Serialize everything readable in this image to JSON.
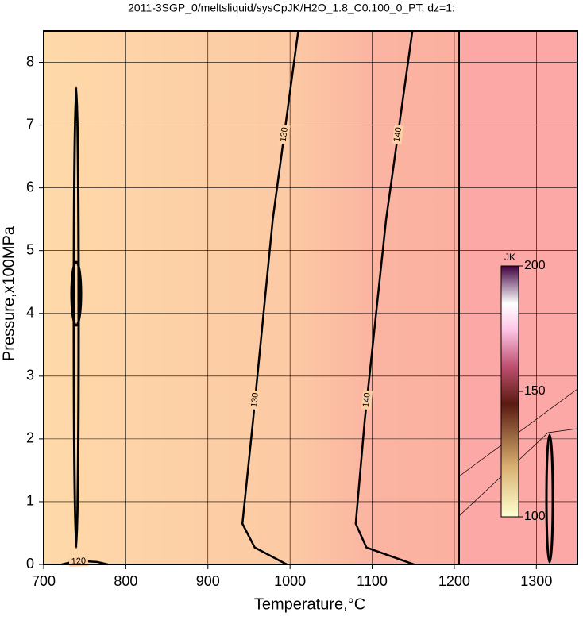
{
  "chart_data": {
    "type": "contour",
    "title": "2011-3SGP_0/meltsliquid/sysCpJK/H2O_1.8_C0.100_0_PT, dz=1:",
    "xlabel": "Temperature,°C",
    "ylabel": "Pressure,x100MPa",
    "xlim": [
      700,
      1350
    ],
    "xticks": [
      700,
      800,
      900,
      1000,
      1100,
      1200,
      1300
    ],
    "ylim": [
      0,
      8.5
    ],
    "yticks": [
      0,
      1,
      2,
      3,
      4,
      5,
      6,
      7,
      8
    ],
    "grid": true,
    "contours": [
      {
        "level": 130,
        "x": [
          1010,
          979,
          955,
          942,
          957,
          996
        ],
        "y": [
          8.5,
          5.5,
          2.3,
          0.65,
          0.27,
          0
        ]
      },
      {
        "level": 140,
        "x": [
          1149,
          1117,
          1091,
          1080,
          1093,
          1151
        ],
        "y": [
          8.5,
          5.5,
          2.3,
          0.65,
          0.27,
          0
        ]
      },
      {
        "level": 120,
        "x": [
          722,
          735,
          750,
          765,
          778
        ],
        "y": [
          0,
          0.04,
          0.05,
          0.04,
          0
        ]
      }
    ],
    "colorbar": {
      "label": "JK",
      "lim": [
        100,
        200
      ],
      "ticks": [
        100,
        150,
        200
      ]
    }
  }
}
